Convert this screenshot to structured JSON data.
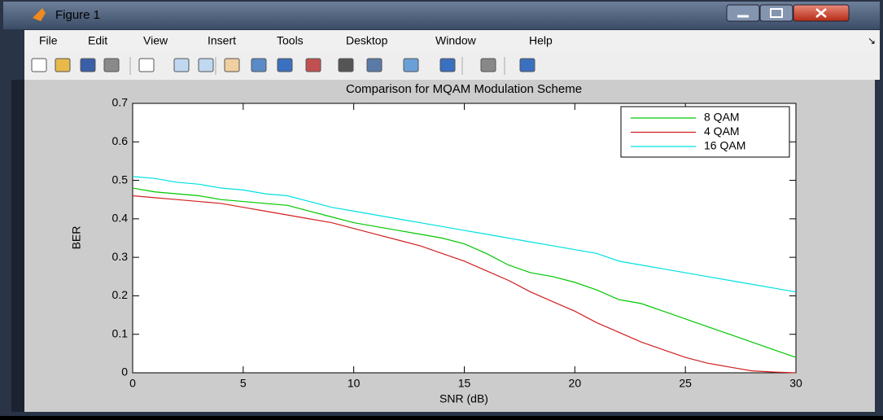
{
  "window": {
    "title": "Figure 1",
    "menu": [
      "File",
      "Edit",
      "View",
      "Insert",
      "Tools",
      "Desktop",
      "Window",
      "Help"
    ]
  },
  "chart_data": {
    "type": "line",
    "title": "Comparison for MQAM Modulation Scheme",
    "xlabel": "SNR (dB)",
    "ylabel": "BER",
    "x": [
      0,
      1,
      2,
      3,
      4,
      5,
      6,
      7,
      8,
      9,
      10,
      11,
      12,
      13,
      14,
      15,
      16,
      17,
      18,
      19,
      20,
      21,
      22,
      23,
      24,
      25,
      26,
      27,
      28,
      29,
      30
    ],
    "series": [
      {
        "name": "8 QAM",
        "color": "#00c800",
        "values": [
          0.48,
          0.47,
          0.465,
          0.46,
          0.45,
          0.445,
          0.44,
          0.435,
          0.42,
          0.405,
          0.39,
          0.38,
          0.37,
          0.36,
          0.35,
          0.335,
          0.31,
          0.28,
          0.26,
          0.25,
          0.235,
          0.215,
          0.19,
          0.18,
          0.16,
          0.14,
          0.12,
          0.1,
          0.08,
          0.06,
          0.04
        ]
      },
      {
        "name": "4 QAM",
        "color": "#d02020",
        "values": [
          0.46,
          0.455,
          0.45,
          0.445,
          0.44,
          0.43,
          0.42,
          0.41,
          0.4,
          0.39,
          0.375,
          0.36,
          0.345,
          0.33,
          0.31,
          0.29,
          0.265,
          0.24,
          0.21,
          0.185,
          0.16,
          0.13,
          0.105,
          0.08,
          0.06,
          0.04,
          0.025,
          0.015,
          0.005,
          0.002,
          0
        ]
      },
      {
        "name": "16 QAM",
        "color": "#00e0e0",
        "values": [
          0.51,
          0.505,
          0.495,
          0.49,
          0.48,
          0.475,
          0.465,
          0.46,
          0.445,
          0.43,
          0.42,
          0.41,
          0.4,
          0.39,
          0.38,
          0.37,
          0.36,
          0.35,
          0.34,
          0.33,
          0.32,
          0.31,
          0.29,
          0.28,
          0.27,
          0.26,
          0.25,
          0.24,
          0.23,
          0.22,
          0.21
        ]
      }
    ],
    "xlim": [
      0,
      30
    ],
    "xticks": [
      0,
      5,
      10,
      15,
      20,
      25,
      30
    ],
    "ylim": [
      0,
      0.7
    ],
    "yticks": [
      0,
      0.1,
      0.2,
      0.3,
      0.4,
      0.5,
      0.6,
      0.7
    ],
    "grid": false,
    "legend": "upper right"
  }
}
